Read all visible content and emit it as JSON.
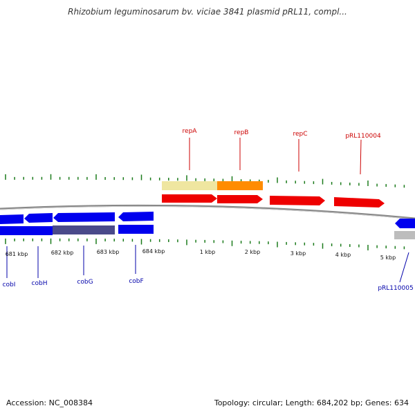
{
  "title": "Rhizobium leguminosarum bv. viciae 3841 plasmid pRL11, compl...",
  "accession": "Accession: NC_008384",
  "topology": "Topology: circular; Length: 684,202 bp; Genes: 634",
  "scale_labels": [
    "681 kbp",
    "682 kbp",
    "683 kbp",
    "684 kbp",
    "1 kbp",
    "2 kbp",
    "3 kbp",
    "4 kbp",
    "5 kbp"
  ],
  "genes_top": [
    "repA",
    "repB",
    "repC",
    "pRL110004"
  ],
  "genes_bottom": [
    "cobI",
    "cobH",
    "cobG",
    "cobF",
    "pRL110005"
  ],
  "colors": {
    "forward_cds": "#ee0000",
    "reverse_cds": "#0000ee",
    "gene_orange": "#ff8c00",
    "gene_tan": "#efe6a0",
    "gene_gray": "#bdbdbd",
    "gene_purple": "#4a4a8a",
    "tick_green": "#1a7a1a",
    "backbone": "#888888"
  }
}
